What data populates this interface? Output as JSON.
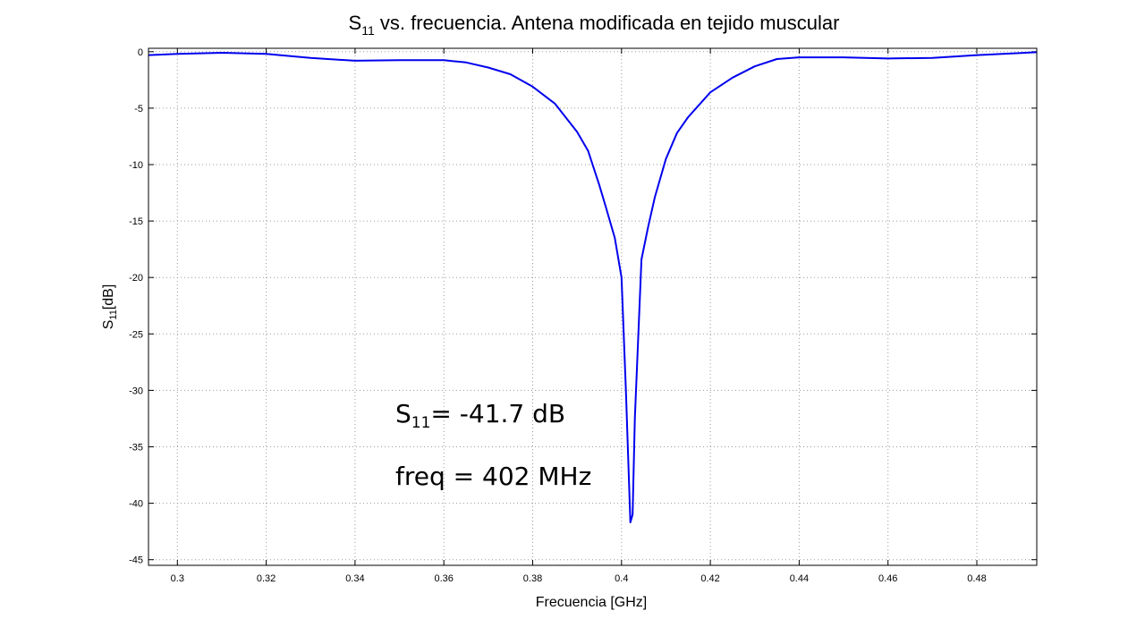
{
  "chart_data": {
    "type": "line",
    "title": {
      "main": "S",
      "sub": "11",
      "rest": " vs. frecuencia. Antena modificada en tejido muscular"
    },
    "xlabel": "Frecuencia [GHz]",
    "ylabel": {
      "main": "S",
      "sub": "11",
      "rest": "[dB]"
    },
    "xlim": [
      0.2935,
      0.4935
    ],
    "ylim": [
      -45.5,
      0.3
    ],
    "xticks": [
      0.3,
      0.32,
      0.34,
      0.36,
      0.38,
      0.4,
      0.42,
      0.44,
      0.46,
      0.48
    ],
    "xtick_labels": [
      "0.3",
      "0.32",
      "0.34",
      "0.36",
      "0.38",
      "0.4",
      "0.42",
      "0.44",
      "0.46",
      "0.48"
    ],
    "yticks": [
      0,
      -5,
      -10,
      -15,
      -20,
      -25,
      -30,
      -35,
      -40,
      -45
    ],
    "ytick_labels": [
      "0",
      "-5",
      "-10",
      "-15",
      "-20",
      "-25",
      "-30",
      "-35",
      "-40",
      "-45"
    ],
    "grid": true,
    "line_color": "#0000ee",
    "series": [
      {
        "x": [
          0.2935,
          0.3,
          0.31,
          0.32,
          0.33,
          0.34,
          0.35,
          0.36,
          0.365,
          0.37,
          0.375,
          0.38,
          0.385,
          0.39,
          0.3925,
          0.395,
          0.3965,
          0.3985,
          0.4,
          0.401,
          0.402,
          0.4025,
          0.403,
          0.4045,
          0.406,
          0.4075,
          0.41,
          0.4125,
          0.415,
          0.42,
          0.425,
          0.43,
          0.435,
          0.44,
          0.45,
          0.46,
          0.47,
          0.48,
          0.4935
        ],
        "y": [
          -0.3,
          -0.2,
          -0.1,
          -0.2,
          -0.55,
          -0.8,
          -0.75,
          -0.75,
          -0.95,
          -1.4,
          -2.0,
          -3.1,
          -4.6,
          -7.1,
          -8.8,
          -11.8,
          -13.8,
          -16.5,
          -20.0,
          -30.0,
          -41.7,
          -41.0,
          -32.5,
          -18.4,
          -15.5,
          -12.9,
          -9.5,
          -7.2,
          -5.8,
          -3.6,
          -2.3,
          -1.3,
          -0.65,
          -0.5,
          -0.5,
          -0.6,
          -0.55,
          -0.3,
          -0.05
        ]
      }
    ],
    "annotations": [
      {
        "main": "S",
        "sub": "11",
        "rest": "= -41.7 dB"
      },
      {
        "text": "freq = 402 MHz"
      }
    ]
  }
}
